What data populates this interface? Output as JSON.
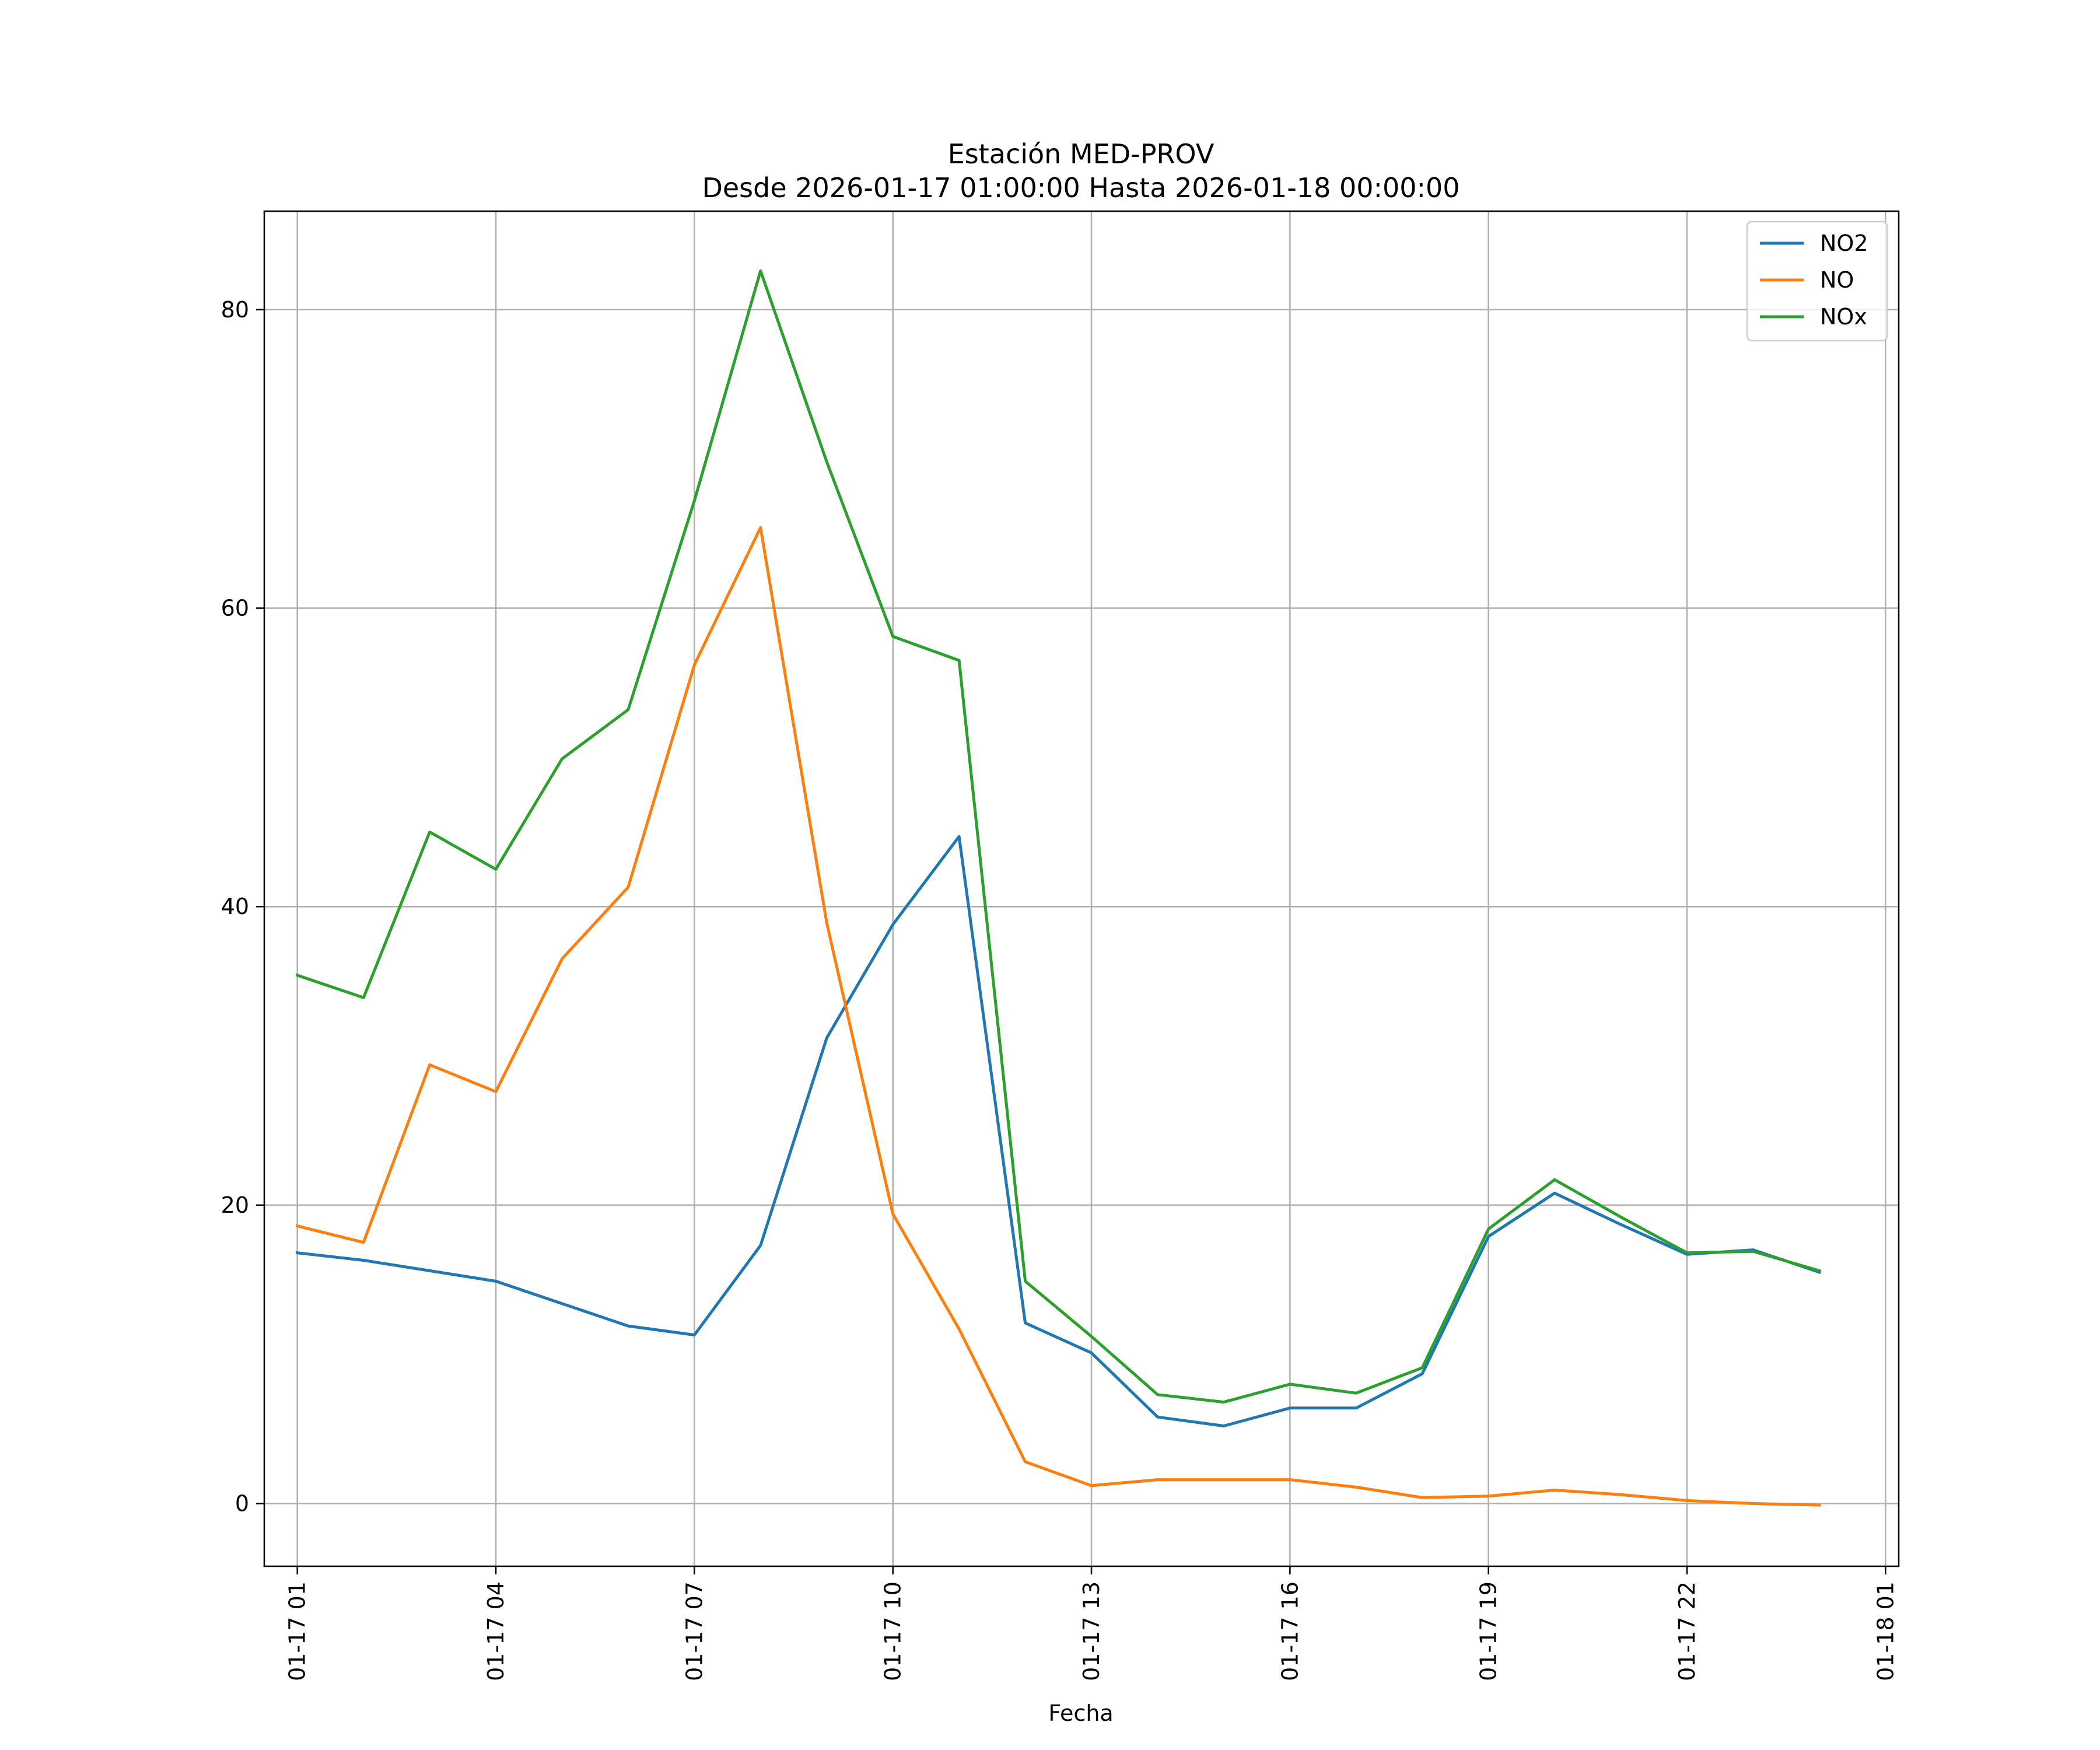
{
  "chart_data": {
    "type": "line",
    "title": "Estación MED-PROV",
    "subtitle": "Desde 2026-01-17 01:00:00 Hasta 2026-01-18 00:00:00",
    "xlabel": "Fecha",
    "ylabel": "",
    "grid": true,
    "legend_position": "top-right",
    "x_range_hours": [
      -0.5,
      24.2
    ],
    "ylim": [
      -4.2,
      86.6
    ],
    "x_ticks": [
      {
        "hour": 0,
        "label": "01-17 01"
      },
      {
        "hour": 3,
        "label": "01-17 04"
      },
      {
        "hour": 6,
        "label": "01-17 07"
      },
      {
        "hour": 9,
        "label": "01-17 10"
      },
      {
        "hour": 12,
        "label": "01-17 13"
      },
      {
        "hour": 15,
        "label": "01-17 16"
      },
      {
        "hour": 18,
        "label": "01-17 19"
      },
      {
        "hour": 21,
        "label": "01-17 22"
      },
      {
        "hour": 24,
        "label": "01-18 01"
      }
    ],
    "y_ticks": [
      0,
      20,
      40,
      60,
      80
    ],
    "x": [
      0,
      1,
      2,
      3,
      4,
      5,
      6,
      7,
      8,
      9,
      10,
      11,
      12,
      13,
      14,
      15,
      16,
      17,
      18,
      19,
      20,
      21,
      22,
      23
    ],
    "x_labels": [
      "2026-01-17 01:00",
      "2026-01-17 02:00",
      "2026-01-17 03:00",
      "2026-01-17 04:00",
      "2026-01-17 05:00",
      "2026-01-17 06:00",
      "2026-01-17 07:00",
      "2026-01-17 08:00",
      "2026-01-17 09:00",
      "2026-01-17 10:00",
      "2026-01-17 11:00",
      "2026-01-17 12:00",
      "2026-01-17 13:00",
      "2026-01-17 14:00",
      "2026-01-17 15:00",
      "2026-01-17 16:00",
      "2026-01-17 17:00",
      "2026-01-17 18:00",
      "2026-01-17 19:00",
      "2026-01-17 20:00",
      "2026-01-17 21:00",
      "2026-01-17 22:00",
      "2026-01-17 23:00",
      "2026-01-18 00:00"
    ],
    "series": [
      {
        "name": "NO2",
        "color": "#1f77b4",
        "values": [
          16.8,
          16.3,
          15.6,
          14.9,
          13.4,
          11.9,
          11.3,
          17.3,
          31.2,
          38.8,
          44.7,
          12.1,
          10.1,
          5.8,
          5.2,
          6.4,
          6.4,
          8.7,
          17.9,
          20.8,
          18.7,
          16.7,
          17.0,
          15.5
        ]
      },
      {
        "name": "NO",
        "color": "#ff7f0e",
        "values": [
          18.6,
          17.5,
          29.4,
          27.6,
          36.5,
          41.3,
          56.2,
          65.4,
          38.9,
          19.4,
          11.7,
          2.8,
          1.2,
          1.6,
          1.6,
          1.6,
          1.1,
          0.4,
          0.5,
          0.9,
          0.6,
          0.2,
          0.0,
          -0.1
        ]
      },
      {
        "name": "NOx",
        "color": "#2ca02c",
        "values": [
          35.4,
          33.9,
          45.0,
          42.5,
          49.9,
          53.2,
          67.2,
          82.6,
          69.8,
          58.1,
          56.5,
          14.9,
          11.2,
          7.3,
          6.8,
          8.0,
          7.4,
          9.1,
          18.4,
          21.7,
          19.2,
          16.8,
          16.9,
          15.6
        ]
      }
    ]
  }
}
